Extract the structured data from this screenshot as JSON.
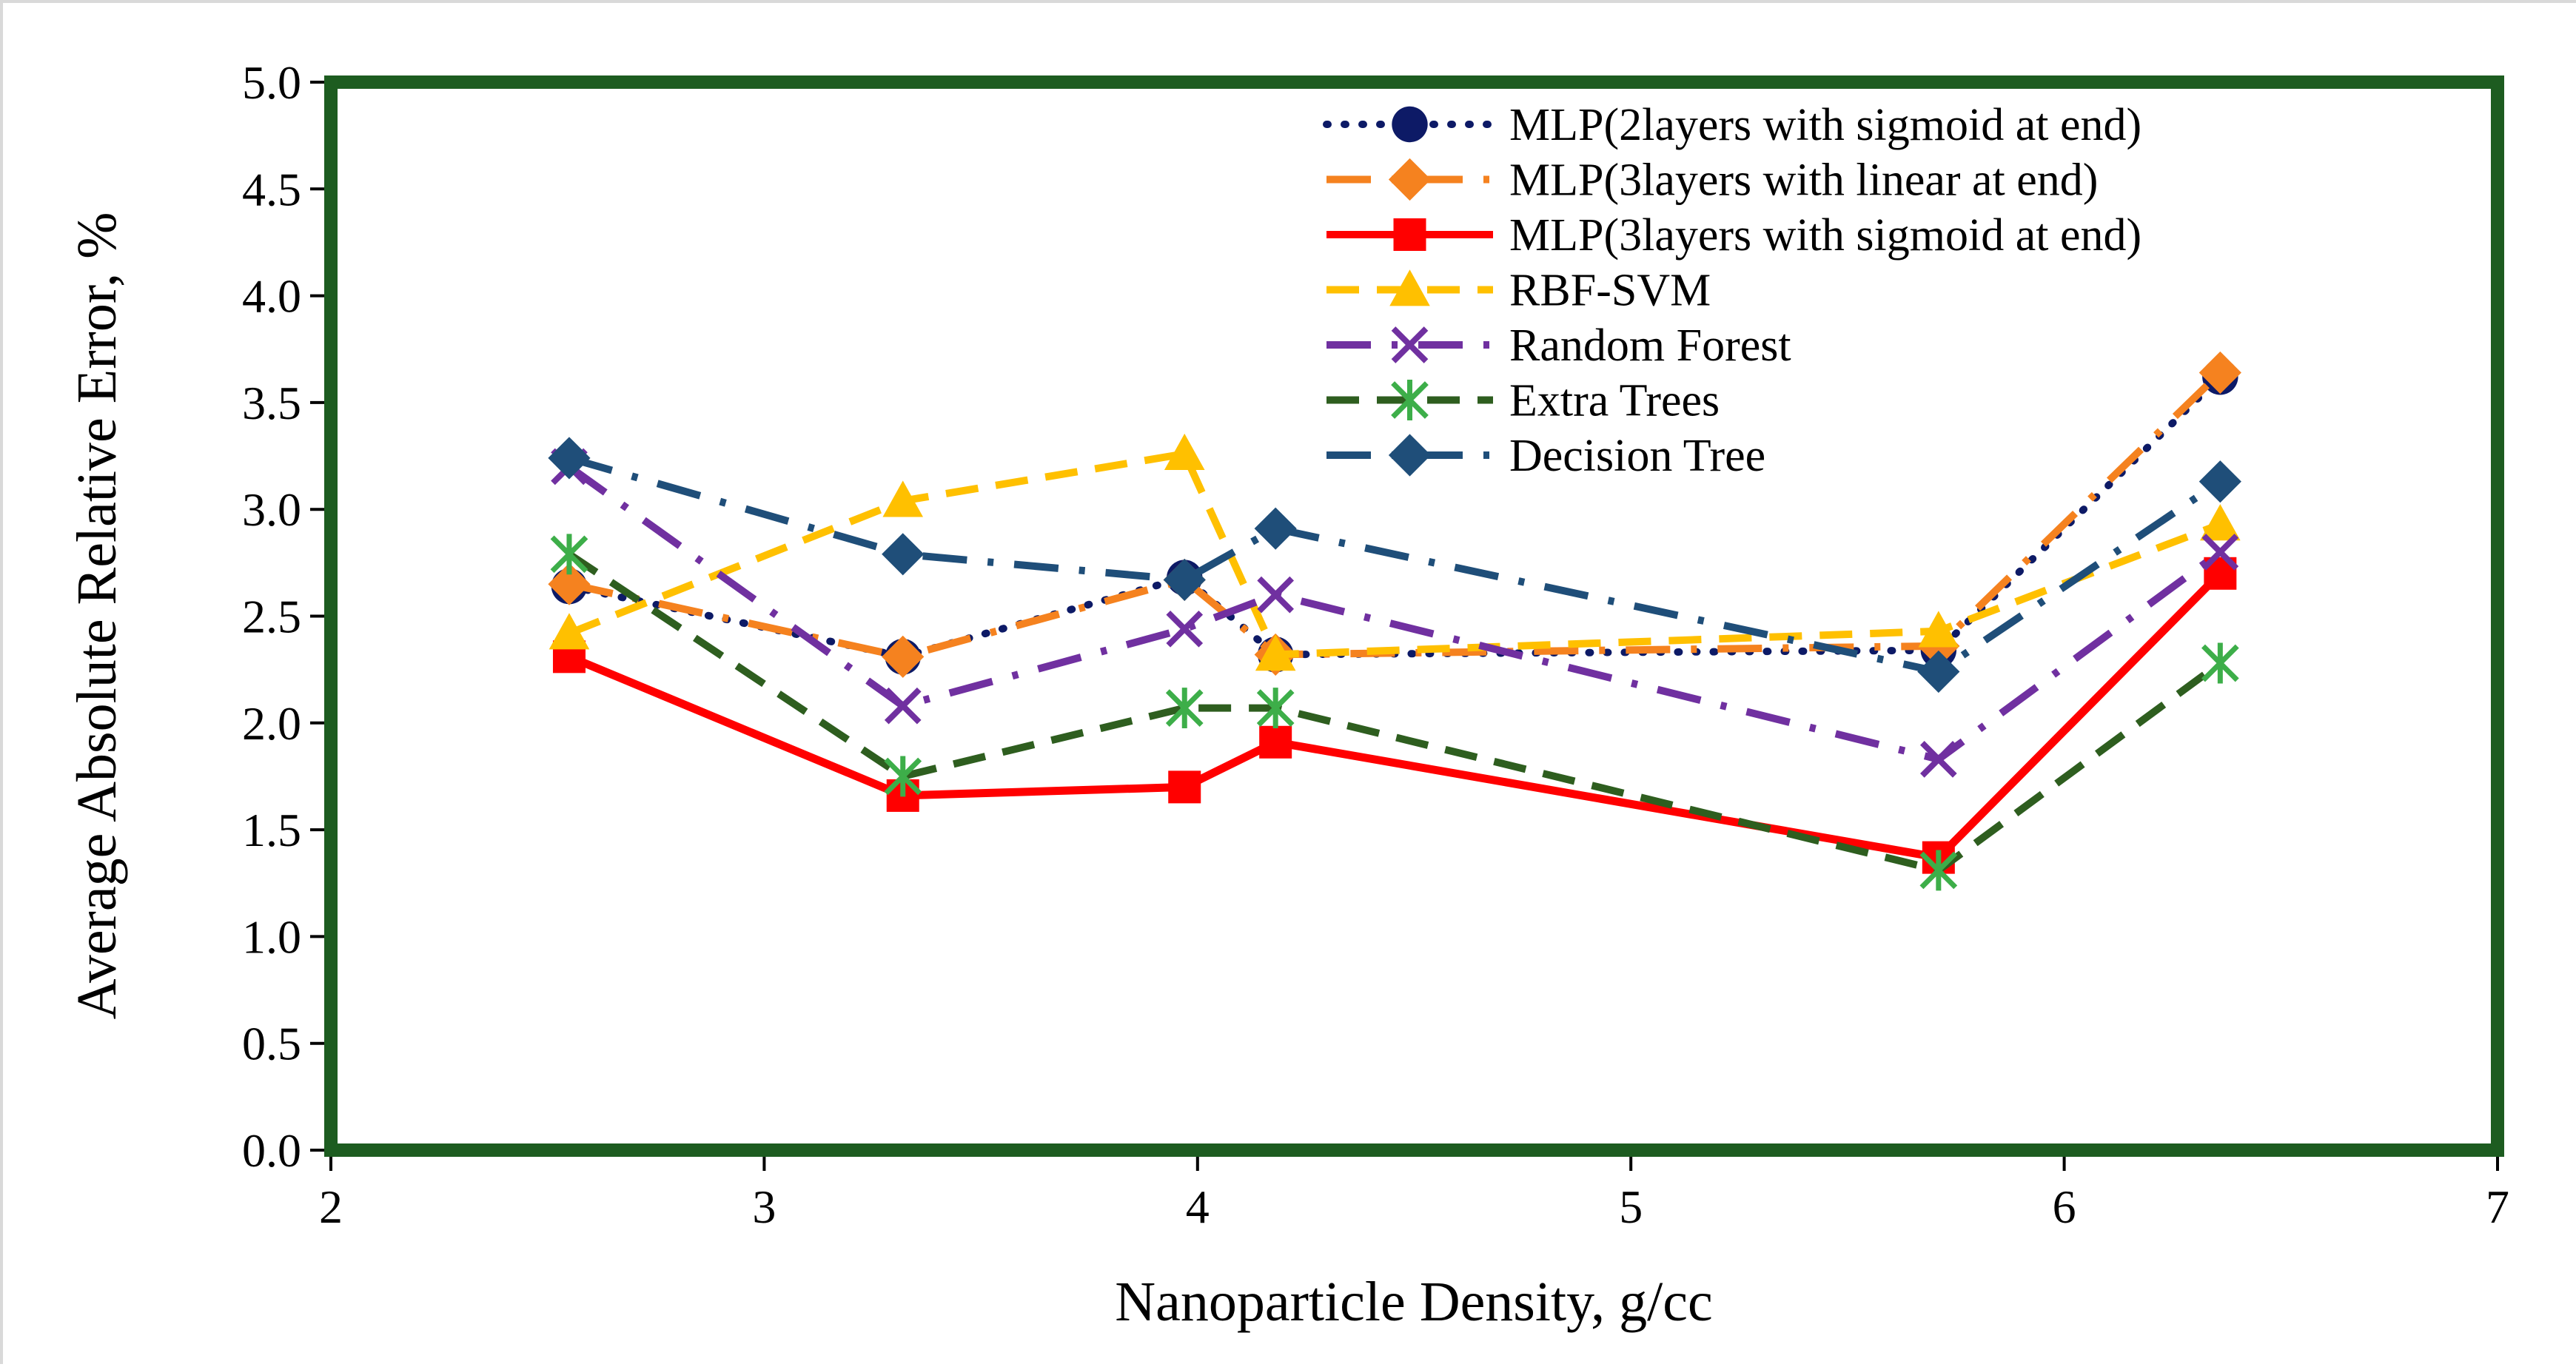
{
  "chart_data": {
    "type": "line",
    "title": "",
    "xlabel": "Nanoparticle Density, g/cc",
    "ylabel": "Average Absolute Relative Error, %",
    "xlim": [
      2,
      7
    ],
    "ylim": [
      0.0,
      5.0
    ],
    "x_ticks": [
      "2",
      "3",
      "4",
      "5",
      "6",
      "7"
    ],
    "y_ticks": [
      "0.0",
      "0.5",
      "1.0",
      "1.5",
      "2.0",
      "2.5",
      "3.0",
      "3.5",
      "4.0",
      "4.5",
      "5.0"
    ],
    "grid": false,
    "legend_position": "top-right",
    "x": [
      2.55,
      3.32,
      3.97,
      4.18,
      5.71,
      6.36
    ],
    "series": [
      {
        "name": "MLP(2layers with sigmoid at end)",
        "color": "#0d1a66",
        "dash": "dotted",
        "marker": "circle",
        "values": [
          2.64,
          2.31,
          2.68,
          2.32,
          2.34,
          3.62
        ]
      },
      {
        "name": "MLP(3layers with linear at end)",
        "color": "#f5821f",
        "dash": "long-dash-dot",
        "marker": "diamond",
        "values": [
          2.65,
          2.31,
          2.67,
          2.32,
          2.36,
          3.64
        ]
      },
      {
        "name": "MLP(3layers with sigmoid at end)",
        "color": "#ff0000",
        "dash": "solid",
        "marker": "square",
        "values": [
          2.31,
          1.66,
          1.7,
          1.91,
          1.37,
          2.7
        ]
      },
      {
        "name": "RBF-SVM",
        "color": "#ffc000",
        "dash": "dashed",
        "marker": "triangle",
        "values": [
          2.42,
          3.04,
          3.26,
          2.32,
          2.43,
          2.93
        ]
      },
      {
        "name": "Random Forest",
        "color": "#7030a0",
        "dash": "long-dash-dot",
        "marker": "cross",
        "values": [
          3.2,
          2.08,
          2.44,
          2.6,
          1.83,
          2.8
        ]
      },
      {
        "name": "Extra Trees",
        "color": "#2e5e1f",
        "marker_color": "#3dae49",
        "dash": "dashed",
        "marker": "star",
        "values": [
          2.79,
          1.75,
          2.07,
          2.07,
          1.31,
          2.28
        ]
      },
      {
        "name": "Decision Tree",
        "color": "#1f4e79",
        "dash": "long-dash-dot",
        "marker": "diamond",
        "values": [
          3.24,
          2.79,
          2.67,
          2.91,
          2.24,
          3.13
        ]
      }
    ],
    "plot_border_color": "#1d5c20"
  }
}
